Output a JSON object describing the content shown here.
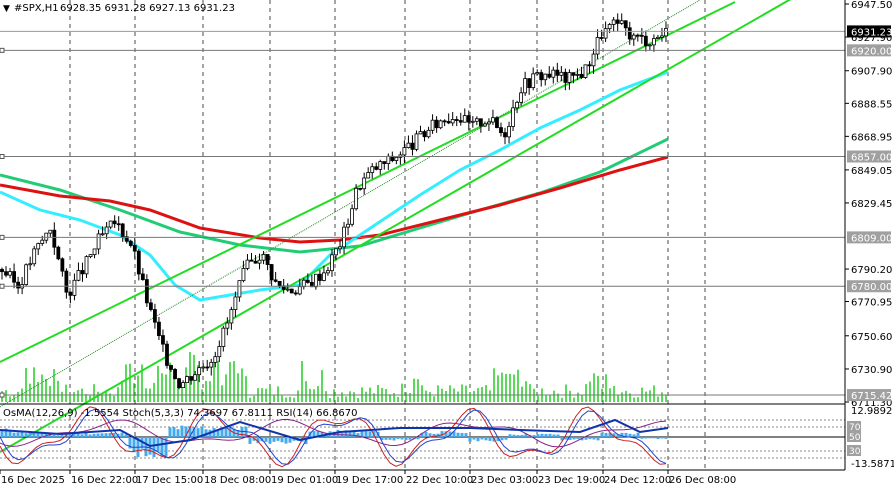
{
  "header": {
    "symbol": "#SPX,H1",
    "ohlc": "6928.35 6931.28 6927.13 6931.23",
    "arrow": "▼"
  },
  "indicator_label": "OsMA(12,26,9) -1.5554  Stoch(5,3,3) 74.3697 67.8111  RSI(14) 66.8670",
  "price_axis": {
    "ticks": [
      "6947.50",
      "6927.90",
      "6907.90",
      "6888.55",
      "6868.95",
      "6849.05",
      "6829.45",
      "6790.20",
      "6770.95",
      "6750.60",
      "6730.90",
      "6711.30"
    ]
  },
  "price_tags": [
    {
      "label": "6931.23",
      "kind": "current"
    },
    {
      "label": "6920.00",
      "kind": "level"
    },
    {
      "label": "6857.00",
      "kind": "level"
    },
    {
      "label": "6809.00",
      "kind": "level"
    },
    {
      "label": "6780.00",
      "kind": "level"
    },
    {
      "label": "6715.42",
      "kind": "level"
    }
  ],
  "indicator_axis": {
    "top": "12.9892",
    "bottom": "-13.5871",
    "levels": [
      "70",
      "50",
      "30"
    ]
  },
  "time_axis": {
    "labels": [
      "16 Dec 2025",
      "16 Dec 22:00",
      "17 Dec 15:00",
      "18 Dec 08:00",
      "19 Dec 01:00",
      "19 Dec 17:00",
      "22 Dec 10:00",
      "23 Dec 03:00",
      "23 Dec 19:00",
      "24 Dec 12:00",
      "26 Dec 08:00"
    ]
  },
  "colors": {
    "background": "#ffffff",
    "candles": "#000000",
    "channel": "#22dd22",
    "ma_cyan": "#33eeff",
    "ma_green": "#22cc77",
    "ma_red": "#dd1111",
    "volume": "#22cc22",
    "osma": "#44aaee",
    "macd_line": "#1133aa",
    "stoch_main": "#cc2222",
    "stoch_signal": "#2244cc",
    "rsi": "#882288",
    "grid": "#000000"
  },
  "chart_data": {
    "type": "candlestick",
    "symbol": "#SPX",
    "timeframe": "H1",
    "series_price": [
      6790,
      6780,
      6800,
      6815,
      6775,
      6790,
      6808,
      6818,
      6805,
      6770,
      6740,
      6722,
      6730,
      6738,
      6760,
      6790,
      6800,
      6780,
      6778,
      6782,
      6790,
      6808,
      6840,
      6850,
      6855,
      6862,
      6870,
      6878,
      6882,
      6875,
      6880,
      6870,
      6898,
      6905,
      6906,
      6903,
      6908,
      6930,
      6936,
      6928,
      6926,
      6931
    ],
    "ma_cyan": [
      6830,
      6820,
      6815,
      6812,
      6805,
      6790,
      6780,
      6778,
      6780,
      6785,
      6790,
      6805,
      6820,
      6840,
      6855,
      6870,
      6885,
      6895,
      6900,
      6910
    ],
    "ma_green": [
      6850,
      6845,
      6838,
      6830,
      6820,
      6810,
      6808,
      6806,
      6808,
      6812,
      6818,
      6826,
      6835,
      6845,
      6855,
      6868
    ],
    "ma_red": [
      6840,
      6836,
      6830,
      6826,
      6818,
      6812,
      6808,
      6808,
      6810,
      6815,
      6822,
      6830,
      6838,
      6846,
      6855
    ],
    "ylim": [
      6711.3,
      6947.5
    ]
  }
}
